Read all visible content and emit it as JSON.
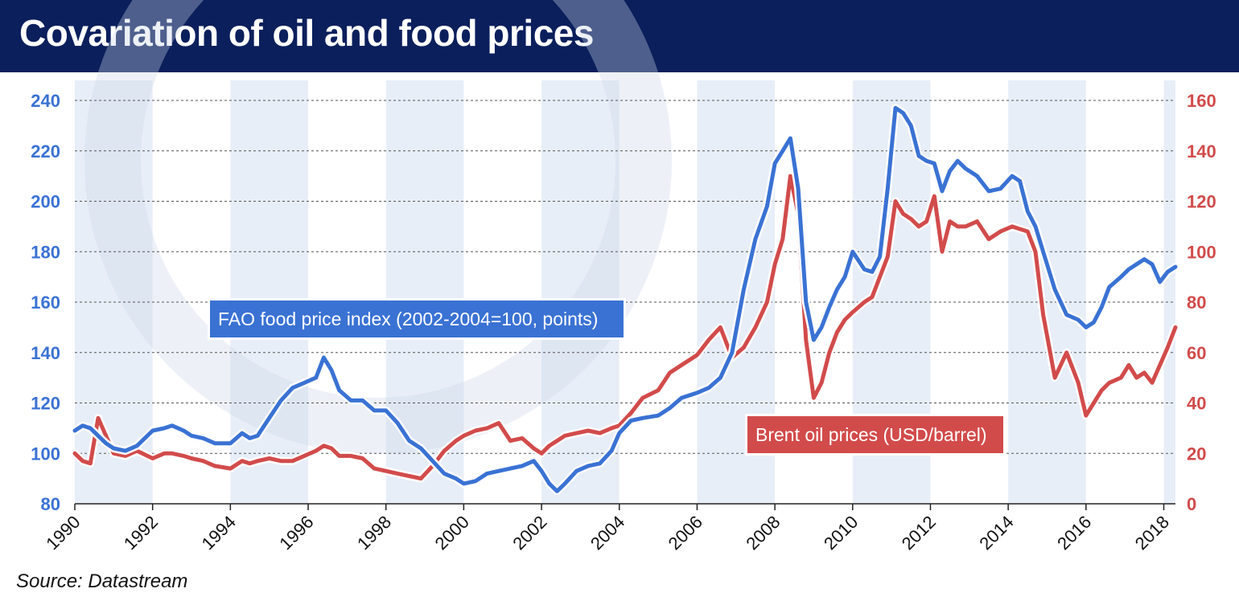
{
  "header": {
    "title": "Covariation of oil and food prices"
  },
  "source": "Source: Datastream",
  "colors": {
    "food": "#3a72d4",
    "oil": "#d24b4b",
    "band": "#e8eef8",
    "header": "#0b1f5c"
  },
  "chart_data": {
    "type": "line",
    "title": "Covariation of oil and food prices",
    "x_range": [
      1990,
      2018.3
    ],
    "x_ticks": [
      "1990",
      "1992",
      "1994",
      "1996",
      "1998",
      "2000",
      "2002",
      "2004",
      "2006",
      "2008",
      "2010",
      "2012",
      "2014",
      "2016",
      "2018"
    ],
    "y_left": {
      "range": [
        80,
        240
      ],
      "ticks": [
        80,
        100,
        120,
        140,
        160,
        180,
        200,
        220,
        240
      ]
    },
    "y_right": {
      "range": [
        0,
        160
      ],
      "ticks": [
        0,
        20,
        40,
        60,
        80,
        100,
        120,
        140,
        160
      ]
    },
    "grid": "horizontal dashed",
    "series": [
      {
        "name": "FAO food price index (2002-2004=100, points)",
        "axis": "left",
        "x": [
          1990.0,
          1990.2,
          1990.4,
          1990.6,
          1990.8,
          1991.0,
          1991.3,
          1991.6,
          1992.0,
          1992.3,
          1992.5,
          1992.8,
          1993.0,
          1993.3,
          1993.6,
          1994.0,
          1994.3,
          1994.5,
          1994.7,
          1995.0,
          1995.3,
          1995.6,
          1995.9,
          1996.2,
          1996.4,
          1996.6,
          1996.8,
          1997.1,
          1997.4,
          1997.7,
          1998.0,
          1998.3,
          1998.6,
          1998.9,
          1999.2,
          1999.5,
          1999.8,
          2000.0,
          2000.3,
          2000.6,
          2000.9,
          2001.2,
          2001.5,
          2001.8,
          2002.0,
          2002.2,
          2002.4,
          2002.6,
          2002.9,
          2003.2,
          2003.5,
          2003.8,
          2004.0,
          2004.3,
          2004.6,
          2005.0,
          2005.3,
          2005.6,
          2006.0,
          2006.3,
          2006.6,
          2006.9,
          2007.2,
          2007.5,
          2007.8,
          2008.0,
          2008.2,
          2008.4,
          2008.6,
          2008.8,
          2009.0,
          2009.2,
          2009.4,
          2009.6,
          2009.8,
          2010.0,
          2010.3,
          2010.5,
          2010.7,
          2010.9,
          2011.1,
          2011.3,
          2011.5,
          2011.7,
          2011.9,
          2012.1,
          2012.3,
          2012.5,
          2012.7,
          2012.9,
          2013.2,
          2013.5,
          2013.8,
          2014.1,
          2014.3,
          2014.5,
          2014.7,
          2014.9,
          2015.2,
          2015.5,
          2015.8,
          2016.0,
          2016.2,
          2016.4,
          2016.6,
          2016.9,
          2017.1,
          2017.3,
          2017.5,
          2017.7,
          2017.9,
          2018.1,
          2018.3
        ],
        "values": [
          109,
          111,
          110,
          107,
          104,
          102,
          101,
          103,
          109,
          110,
          111,
          109,
          107,
          106,
          104,
          104,
          108,
          106,
          107,
          114,
          121,
          126,
          128,
          130,
          138,
          133,
          125,
          121,
          121,
          117,
          117,
          112,
          105,
          102,
          97,
          92,
          90,
          88,
          89,
          92,
          93,
          94,
          95,
          97,
          93,
          88,
          85,
          88,
          93,
          95,
          96,
          101,
          108,
          113,
          114,
          115,
          118,
          122,
          124,
          126,
          130,
          140,
          165,
          185,
          198,
          215,
          220,
          225,
          205,
          160,
          145,
          150,
          158,
          165,
          170,
          180,
          173,
          172,
          178,
          205,
          237,
          235,
          230,
          218,
          216,
          215,
          204,
          212,
          216,
          213,
          210,
          204,
          205,
          210,
          208,
          196,
          190,
          180,
          165,
          155,
          153,
          150,
          152,
          158,
          166,
          170,
          173,
          175,
          177,
          175,
          168,
          172,
          174
        ]
      },
      {
        "name": "Brent oil prices (USD/barrel)",
        "axis": "right",
        "x": [
          1990.0,
          1990.2,
          1990.4,
          1990.6,
          1990.8,
          1991.0,
          1991.3,
          1991.6,
          1992.0,
          1992.3,
          1992.5,
          1992.8,
          1993.0,
          1993.3,
          1993.6,
          1994.0,
          1994.3,
          1994.5,
          1994.7,
          1995.0,
          1995.3,
          1995.6,
          1995.9,
          1996.2,
          1996.4,
          1996.6,
          1996.8,
          1997.1,
          1997.4,
          1997.7,
          1998.0,
          1998.3,
          1998.6,
          1998.9,
          1999.2,
          1999.5,
          1999.8,
          2000.0,
          2000.3,
          2000.6,
          2000.9,
          2001.2,
          2001.5,
          2001.8,
          2002.0,
          2002.2,
          2002.4,
          2002.6,
          2002.9,
          2003.2,
          2003.5,
          2003.8,
          2004.0,
          2004.3,
          2004.6,
          2005.0,
          2005.3,
          2005.6,
          2006.0,
          2006.3,
          2006.6,
          2006.9,
          2007.2,
          2007.5,
          2007.8,
          2008.0,
          2008.2,
          2008.4,
          2008.6,
          2008.8,
          2009.0,
          2009.2,
          2009.4,
          2009.6,
          2009.8,
          2010.0,
          2010.3,
          2010.5,
          2010.7,
          2010.9,
          2011.1,
          2011.3,
          2011.5,
          2011.7,
          2011.9,
          2012.1,
          2012.3,
          2012.5,
          2012.7,
          2012.9,
          2013.2,
          2013.5,
          2013.8,
          2014.1,
          2014.3,
          2014.5,
          2014.7,
          2014.9,
          2015.2,
          2015.5,
          2015.8,
          2016.0,
          2016.2,
          2016.4,
          2016.6,
          2016.9,
          2017.1,
          2017.3,
          2017.5,
          2017.7,
          2017.9,
          2018.1,
          2018.3
        ],
        "values": [
          20,
          17,
          16,
          34,
          27,
          20,
          19,
          21,
          18,
          20,
          20,
          19,
          18,
          17,
          15,
          14,
          17,
          16,
          17,
          18,
          17,
          17,
          19,
          21,
          23,
          22,
          19,
          19,
          18,
          14,
          13,
          12,
          11,
          10,
          15,
          21,
          25,
          27,
          29,
          30,
          32,
          25,
          26,
          22,
          20,
          23,
          25,
          27,
          28,
          29,
          28,
          30,
          31,
          36,
          42,
          45,
          52,
          55,
          59,
          65,
          70,
          58,
          62,
          70,
          80,
          95,
          105,
          130,
          115,
          65,
          42,
          48,
          60,
          68,
          73,
          76,
          80,
          82,
          90,
          98,
          120,
          115,
          113,
          110,
          112,
          122,
          100,
          112,
          110,
          110,
          112,
          105,
          108,
          110,
          109,
          108,
          100,
          75,
          50,
          60,
          48,
          35,
          40,
          45,
          48,
          50,
          55,
          50,
          52,
          48,
          55,
          62,
          70
        ]
      }
    ],
    "annotations": [
      {
        "text": "FAO food price index (2002-2004=100, points)",
        "series": "FAO food price index (2002-2004=100, points)"
      },
      {
        "text": "Brent oil prices (USD/barrel)",
        "series": "Brent oil prices (USD/barrel)"
      }
    ]
  }
}
